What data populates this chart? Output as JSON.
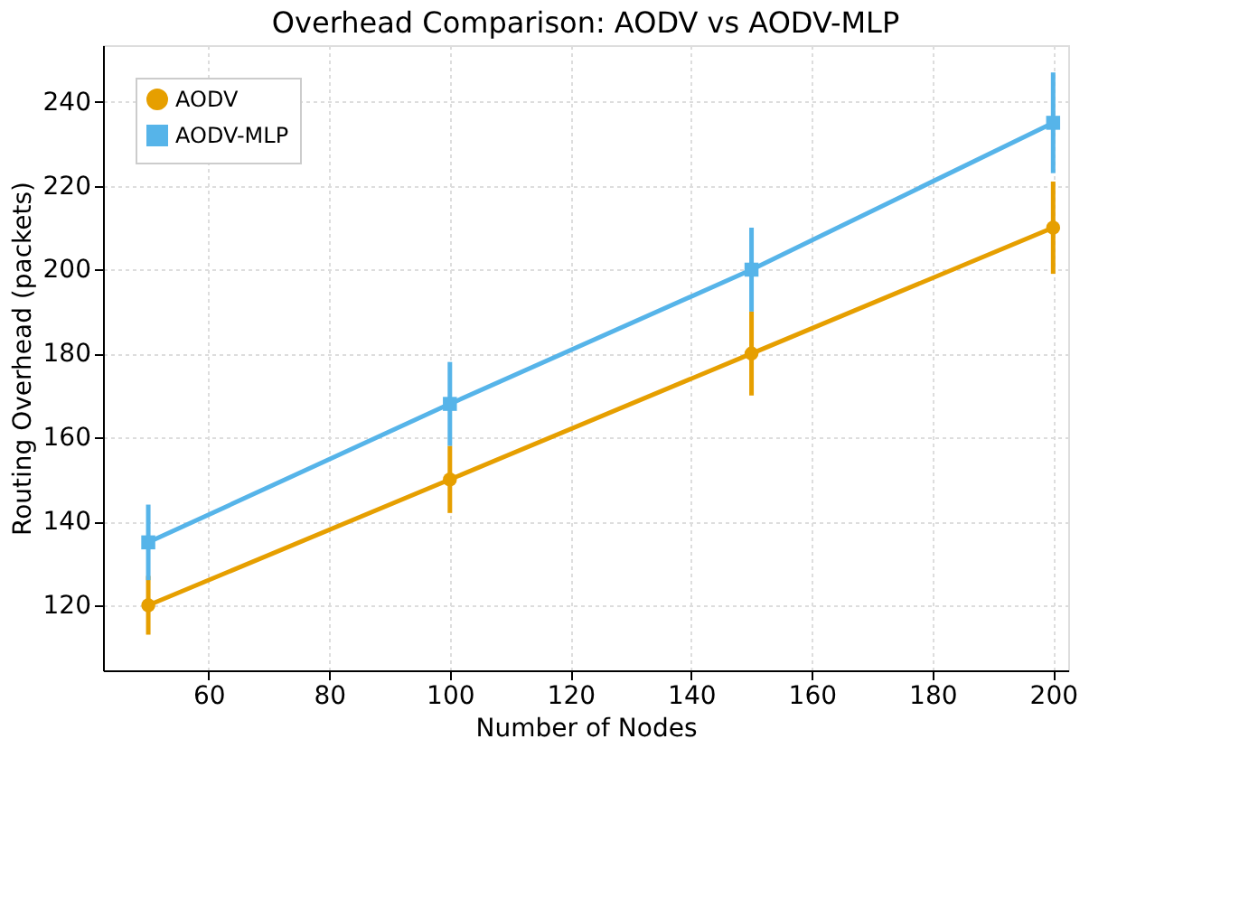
{
  "chart_data": {
    "type": "line",
    "title": "Overhead Comparison: AODV vs AODV-MLP",
    "xlabel": "Number of Nodes",
    "ylabel": "Routing Overhead (packets)",
    "x": [
      50,
      100,
      150,
      200
    ],
    "series": [
      {
        "name": "AODV",
        "color": "#e69f00",
        "marker": "circle",
        "values": [
          120,
          150,
          180,
          210
        ],
        "errors": [
          7,
          8,
          10,
          11
        ]
      },
      {
        "name": "AODV-MLP",
        "color": "#56b4e9",
        "marker": "square",
        "values": [
          135,
          168,
          200,
          235
        ],
        "errors": [
          9,
          10,
          10,
          12
        ]
      }
    ],
    "xlim": [
      42.5,
      202.5
    ],
    "ylim": [
      104.5,
      253.5
    ],
    "xticks": [
      60,
      80,
      100,
      120,
      140,
      160,
      180,
      200
    ],
    "yticks": [
      120,
      140,
      160,
      180,
      200,
      220,
      240
    ],
    "grid": true,
    "legend": "top left"
  }
}
